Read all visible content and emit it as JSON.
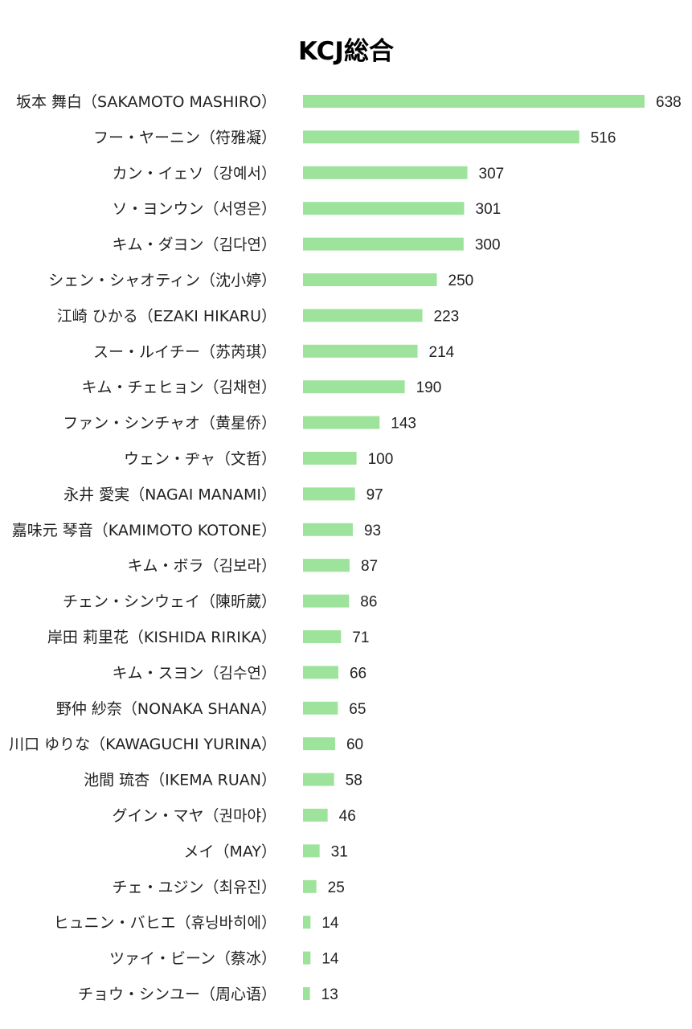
{
  "chart_data": {
    "type": "bar",
    "orientation": "horizontal",
    "title": "KCJ総合",
    "xlabel": "",
    "ylabel": "",
    "xlim": [
      0,
      638
    ],
    "grid": false,
    "legend": "none",
    "bar_color": "#9de39b",
    "categories": [
      "坂本 舞白（SAKAMOTO MASHIRO）",
      "フー・ヤーニン（符雅凝）",
      "カン・イェソ（강예서）",
      "ソ・ヨンウン（서영은）",
      "キム・ダヨン（김다연）",
      "シェン・シャオティン（沈小婷）",
      "江崎 ひかる（EZAKI HIKARU）",
      "スー・ルイチー（苏芮琪）",
      "キム・チェヒョン（김채현）",
      "ファン・シンチャオ（黄星侨）",
      "ウェン・ヂャ（文哲）",
      "永井 愛実（NAGAI MANAMI）",
      "嘉味元 琴音（KAMIMOTO KOTONE）",
      "キム・ボラ（김보라）",
      "チェン・シンウェイ（陳昕葳）",
      "岸田 莉里花（KISHIDA RIRIKA）",
      "キム・スヨン（김수연）",
      "野仲 紗奈（NONAKA SHANA）",
      "川口 ゆりな（KAWAGUCHI YURINA）",
      "池間 琉杏（IKEMA RUAN）",
      "グイン・マヤ（권마야）",
      "メイ（MAY）",
      "チェ・ユジン（최유진）",
      "ヒュニン・バヒエ（휴닝바히에）",
      "ツァイ・ビーン（蔡冰）",
      "チョウ・シンユー（周心语）"
    ],
    "values": [
      638,
      516,
      307,
      301,
      300,
      250,
      223,
      214,
      190,
      143,
      100,
      97,
      93,
      87,
      86,
      71,
      66,
      65,
      60,
      58,
      46,
      31,
      25,
      14,
      14,
      13
    ]
  }
}
